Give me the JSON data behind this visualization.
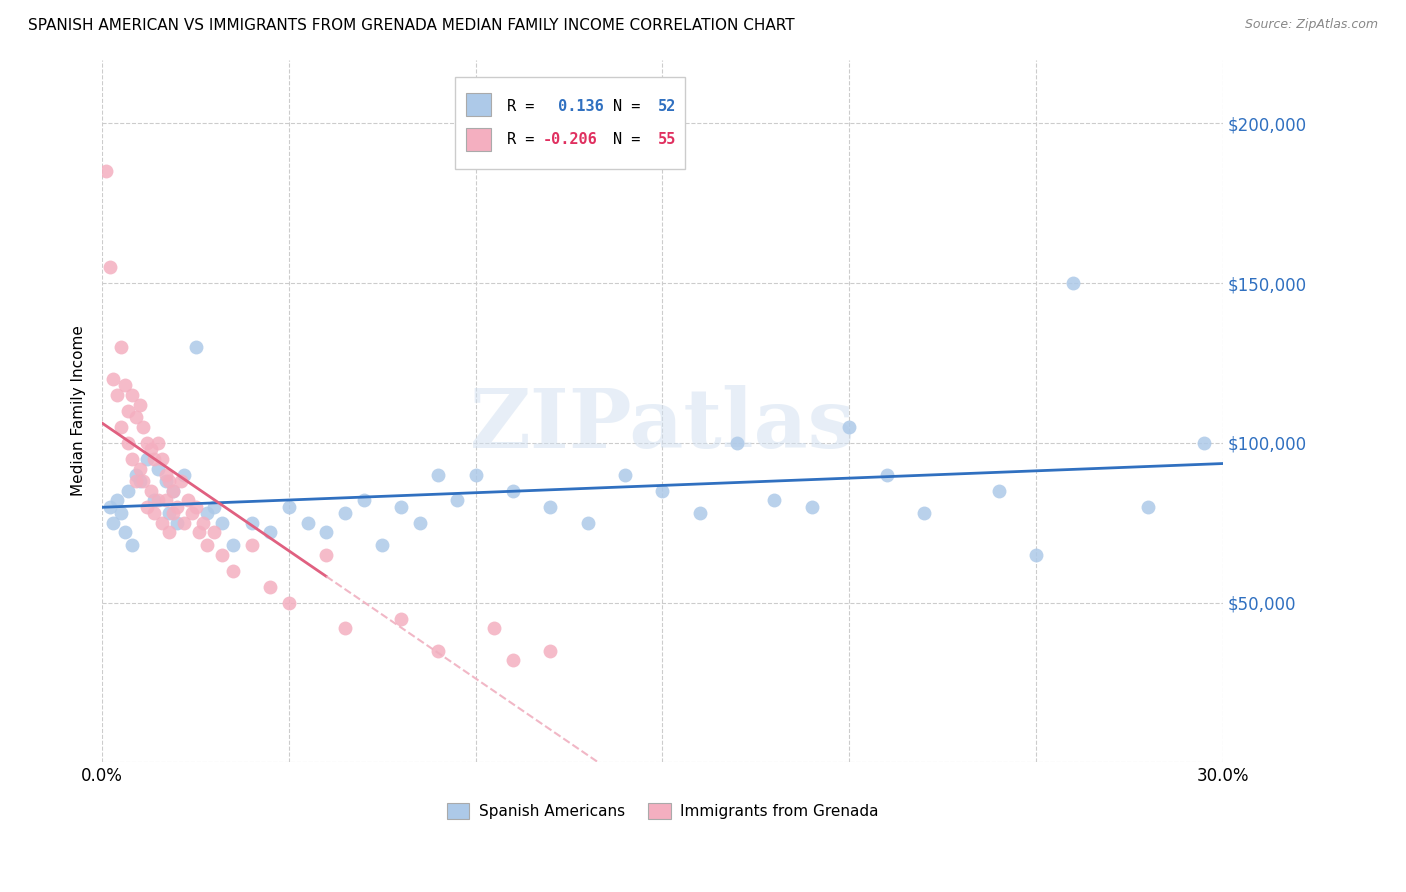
{
  "title": "SPANISH AMERICAN VS IMMIGRANTS FROM GRENADA MEDIAN FAMILY INCOME CORRELATION CHART",
  "source": "Source: ZipAtlas.com",
  "ylabel": "Median Family Income",
  "watermark": "ZIPatlas",
  "legend_label_blue": "Spanish Americans",
  "legend_label_pink": "Immigrants from Grenada",
  "r_blue": 0.136,
  "n_blue": 52,
  "r_pink": -0.206,
  "n_pink": 55,
  "color_blue": "#adc9e8",
  "color_pink": "#f4afc0",
  "line_blue": "#3070c0",
  "line_pink_solid": "#e06080",
  "line_pink_dash": "#f0b0c0",
  "yticks": [
    0,
    50000,
    100000,
    150000,
    200000
  ],
  "ytick_labels": [
    "",
    "$50,000",
    "$100,000",
    "$150,000",
    "$200,000"
  ],
  "xlim": [
    0,
    0.3
  ],
  "ylim": [
    0,
    220000
  ],
  "background": "#ffffff",
  "blue_scatter_x": [
    0.002,
    0.003,
    0.004,
    0.005,
    0.006,
    0.007,
    0.008,
    0.009,
    0.01,
    0.012,
    0.014,
    0.015,
    0.017,
    0.018,
    0.019,
    0.02,
    0.022,
    0.025,
    0.028,
    0.03,
    0.032,
    0.035,
    0.04,
    0.045,
    0.05,
    0.055,
    0.06,
    0.065,
    0.07,
    0.075,
    0.08,
    0.085,
    0.09,
    0.095,
    0.1,
    0.11,
    0.12,
    0.13,
    0.14,
    0.15,
    0.16,
    0.17,
    0.18,
    0.19,
    0.2,
    0.21,
    0.22,
    0.24,
    0.25,
    0.26,
    0.28,
    0.295
  ],
  "blue_scatter_y": [
    80000,
    75000,
    82000,
    78000,
    72000,
    85000,
    68000,
    90000,
    88000,
    95000,
    82000,
    92000,
    88000,
    78000,
    85000,
    75000,
    90000,
    130000,
    78000,
    80000,
    75000,
    68000,
    75000,
    72000,
    80000,
    75000,
    72000,
    78000,
    82000,
    68000,
    80000,
    75000,
    90000,
    82000,
    90000,
    85000,
    80000,
    75000,
    90000,
    85000,
    78000,
    100000,
    82000,
    80000,
    105000,
    90000,
    78000,
    85000,
    65000,
    150000,
    80000,
    100000
  ],
  "pink_scatter_x": [
    0.001,
    0.002,
    0.003,
    0.004,
    0.005,
    0.005,
    0.006,
    0.007,
    0.007,
    0.008,
    0.008,
    0.009,
    0.009,
    0.01,
    0.01,
    0.011,
    0.011,
    0.012,
    0.012,
    0.013,
    0.013,
    0.014,
    0.014,
    0.015,
    0.015,
    0.016,
    0.016,
    0.017,
    0.017,
    0.018,
    0.018,
    0.019,
    0.019,
    0.02,
    0.021,
    0.022,
    0.023,
    0.024,
    0.025,
    0.026,
    0.027,
    0.028,
    0.03,
    0.032,
    0.035,
    0.04,
    0.045,
    0.05,
    0.06,
    0.065,
    0.08,
    0.09,
    0.105,
    0.11,
    0.12
  ],
  "pink_scatter_y": [
    185000,
    155000,
    120000,
    115000,
    130000,
    105000,
    118000,
    110000,
    100000,
    115000,
    95000,
    108000,
    88000,
    112000,
    92000,
    105000,
    88000,
    100000,
    80000,
    98000,
    85000,
    95000,
    78000,
    100000,
    82000,
    95000,
    75000,
    90000,
    82000,
    88000,
    72000,
    85000,
    78000,
    80000,
    88000,
    75000,
    82000,
    78000,
    80000,
    72000,
    75000,
    68000,
    72000,
    65000,
    60000,
    68000,
    55000,
    50000,
    65000,
    42000,
    45000,
    35000,
    42000,
    32000,
    35000
  ]
}
